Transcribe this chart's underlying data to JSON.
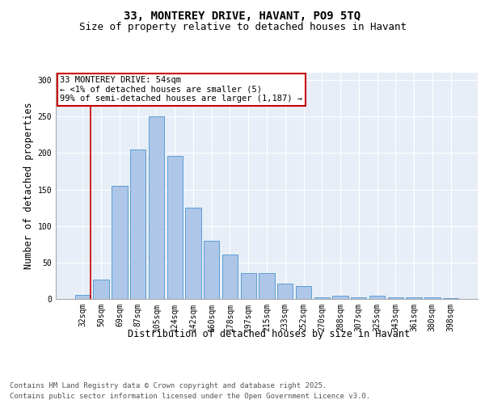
{
  "title_line1": "33, MONTEREY DRIVE, HAVANT, PO9 5TQ",
  "title_line2": "Size of property relative to detached houses in Havant",
  "xlabel": "Distribution of detached houses by size in Havant",
  "ylabel": "Number of detached properties",
  "footer_line1": "Contains HM Land Registry data © Crown copyright and database right 2025.",
  "footer_line2": "Contains public sector information licensed under the Open Government Licence v3.0.",
  "annotation_title": "33 MONTEREY DRIVE: 54sqm",
  "annotation_line2": "← <1% of detached houses are smaller (5)",
  "annotation_line3": "99% of semi-detached houses are larger (1,187) →",
  "bar_labels": [
    "32sqm",
    "50sqm",
    "69sqm",
    "87sqm",
    "105sqm",
    "124sqm",
    "142sqm",
    "160sqm",
    "178sqm",
    "197sqm",
    "215sqm",
    "233sqm",
    "252sqm",
    "270sqm",
    "288sqm",
    "307sqm",
    "325sqm",
    "343sqm",
    "361sqm",
    "380sqm",
    "398sqm"
  ],
  "bar_values": [
    5,
    27,
    155,
    205,
    250,
    196,
    125,
    80,
    61,
    35,
    35,
    21,
    18,
    2,
    4,
    2,
    4,
    2,
    2,
    2,
    1
  ],
  "bar_color": "#aec6e8",
  "bar_edge_color": "#5a9fd4",
  "vline_color": "#cc0000",
  "background_color": "#e8eef7",
  "ylim": [
    0,
    310
  ],
  "yticks": [
    0,
    50,
    100,
    150,
    200,
    250,
    300
  ],
  "annotation_box_color": "#cc0000",
  "title_fontsize": 10,
  "subtitle_fontsize": 9,
  "axis_label_fontsize": 8.5,
  "tick_fontsize": 7,
  "footer_fontsize": 6.5,
  "annotation_fontsize": 7.5
}
